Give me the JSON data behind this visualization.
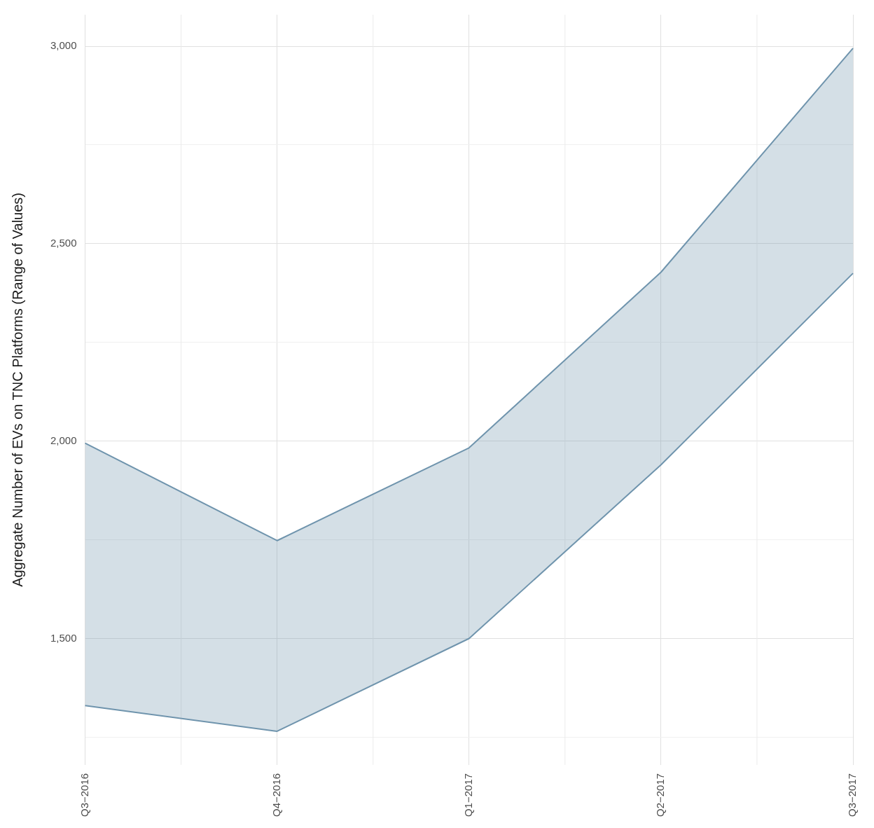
{
  "chart_data": {
    "type": "area",
    "ylabel": "Aggregate Number of EVs on TNC Platforms (Range of Values)",
    "categories": [
      "Q3−2016",
      "Q4−2016",
      "Q1−2017",
      "Q2−2017",
      "Q3−2017"
    ],
    "series": [
      {
        "type": "line",
        "color": "#6f94ad",
        "values": [
          1330,
          1265,
          1500,
          1940,
          2425
        ]
      },
      {
        "color": "#6f94ad",
        "values": [
          1995,
          1748,
          1983,
          2428,
          2995
        ]
      }
    ],
    "ylim": [
      1180,
      3080
    ],
    "yticks": [
      {
        "value": 1250,
        "label": null
      },
      {
        "value": 1500,
        "label": "1,500"
      },
      {
        "value": 1750,
        "label": null
      },
      {
        "value": 2000,
        "label": "2,000"
      },
      {
        "value": 2250,
        "label": null
      },
      {
        "value": 2500,
        "label": "2,500"
      },
      {
        "value": 2750,
        "label": null
      },
      {
        "value": 3000,
        "label": "3,000"
      }
    ],
    "grid": true,
    "legend": false
  }
}
